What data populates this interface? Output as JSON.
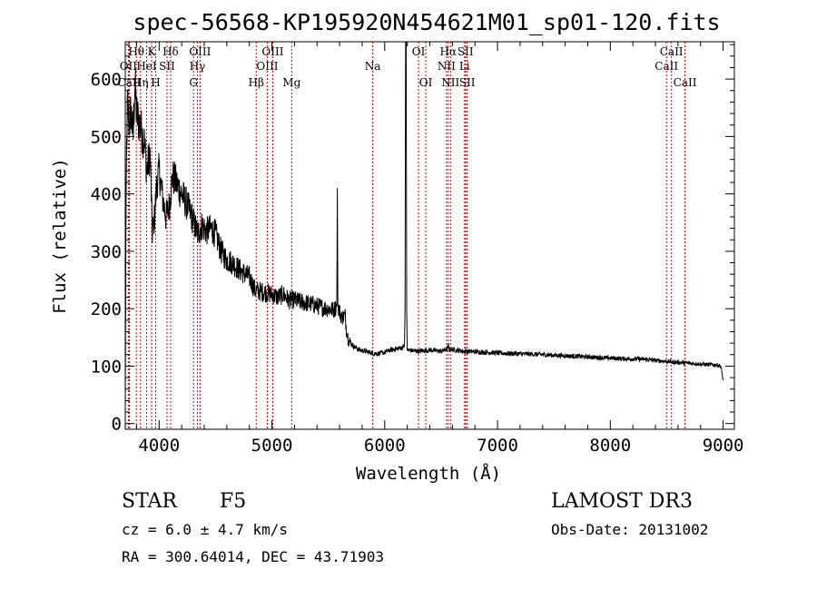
{
  "chart_data": {
    "type": "line",
    "title": "spec-56568-KP195920N454621M01_sp01-120.fits",
    "xlabel": "Wavelength (Å)",
    "ylabel": "Flux (relative)",
    "xlim": [
      3700,
      9100
    ],
    "ylim": [
      -10,
      665
    ],
    "x_ticks": [
      4000,
      5000,
      6000,
      7000,
      8000,
      9000
    ],
    "y_ticks": [
      0,
      100,
      200,
      300,
      400,
      500,
      600
    ],
    "grid": false,
    "spectrum_anchors": [
      [
        3700,
        20
      ],
      [
        3705,
        300
      ],
      [
        3712,
        480
      ],
      [
        3720,
        560
      ],
      [
        3735,
        520
      ],
      [
        3750,
        545
      ],
      [
        3770,
        500
      ],
      [
        3785,
        595
      ],
      [
        3800,
        540
      ],
      [
        3830,
        520
      ],
      [
        3870,
        490
      ],
      [
        3890,
        440
      ],
      [
        3920,
        470
      ],
      [
        3940,
        330
      ],
      [
        3960,
        360
      ],
      [
        3980,
        420
      ],
      [
        4000,
        440
      ],
      [
        4030,
        395
      ],
      [
        4060,
        360
      ],
      [
        4090,
        380
      ],
      [
        4120,
        430
      ],
      [
        4150,
        420
      ],
      [
        4200,
        400
      ],
      [
        4250,
        380
      ],
      [
        4300,
        355
      ],
      [
        4340,
        330
      ],
      [
        4380,
        345
      ],
      [
        4420,
        335
      ],
      [
        4460,
        340
      ],
      [
        4500,
        330
      ],
      [
        4550,
        300
      ],
      [
        4600,
        285
      ],
      [
        4650,
        280
      ],
      [
        4700,
        270
      ],
      [
        4750,
        262
      ],
      [
        4800,
        255
      ],
      [
        4850,
        232
      ],
      [
        4900,
        230
      ],
      [
        4950,
        228
      ],
      [
        5000,
        225
      ],
      [
        5050,
        220
      ],
      [
        5100,
        225
      ],
      [
        5150,
        215
      ],
      [
        5200,
        215
      ],
      [
        5250,
        212
      ],
      [
        5300,
        210
      ],
      [
        5350,
        208
      ],
      [
        5400,
        205
      ],
      [
        5450,
        202
      ],
      [
        5500,
        200
      ],
      [
        5550,
        198
      ],
      [
        5575,
        205
      ],
      [
        5580,
        410
      ],
      [
        5585,
        205
      ],
      [
        5600,
        195
      ],
      [
        5620,
        185
      ],
      [
        5650,
        188
      ],
      [
        5660,
        165
      ],
      [
        5680,
        145
      ],
      [
        5720,
        135
      ],
      [
        5780,
        128
      ],
      [
        5850,
        125
      ],
      [
        5900,
        122
      ],
      [
        5950,
        122
      ],
      [
        6000,
        124
      ],
      [
        6050,
        128
      ],
      [
        6100,
        130
      ],
      [
        6150,
        132
      ],
      [
        6175,
        135
      ],
      [
        6180,
        200
      ],
      [
        6185,
        680
      ],
      [
        6190,
        680
      ],
      [
        6195,
        200
      ],
      [
        6200,
        128
      ],
      [
        6300,
        126
      ],
      [
        6400,
        128
      ],
      [
        6500,
        126
      ],
      [
        6560,
        130
      ],
      [
        6563,
        145
      ],
      [
        6566,
        130
      ],
      [
        6700,
        126
      ],
      [
        6900,
        124
      ],
      [
        7100,
        122
      ],
      [
        7300,
        121
      ],
      [
        7500,
        119
      ],
      [
        7700,
        117
      ],
      [
        7900,
        115
      ],
      [
        8100,
        113
      ],
      [
        8300,
        112
      ],
      [
        8500,
        108
      ],
      [
        8700,
        105
      ],
      [
        8850,
        103
      ],
      [
        8950,
        102
      ],
      [
        8980,
        100
      ],
      [
        9000,
        75
      ],
      [
        9002,
        -5
      ]
    ],
    "noise_amplitude": 0.035,
    "spectral_lines": [
      {
        "label": "Hθ",
        "wavelength": 3798,
        "row": 0
      },
      {
        "label": "OII",
        "wavelength": 3727,
        "row": 1
      },
      {
        "label": "CaII",
        "wavelength": 3736,
        "row": 2
      },
      {
        "label": "Hη",
        "wavelength": 3835,
        "row": 2
      },
      {
        "label": "HeI",
        "wavelength": 3889,
        "row": 1
      },
      {
        "label": "K",
        "wavelength": 3934,
        "row": 0
      },
      {
        "label": "SII",
        "wavelength": 4070,
        "row": 1
      },
      {
        "label": "H",
        "wavelength": 3969,
        "row": 2
      },
      {
        "label": "Hδ",
        "wavelength": 4102,
        "row": 0
      },
      {
        "label": "OIII",
        "wavelength": 4363,
        "row": 0
      },
      {
        "label": "Hγ",
        "wavelength": 4340,
        "row": 1
      },
      {
        "label": "G",
        "wavelength": 4305,
        "row": 2
      },
      {
        "label": "Hβ",
        "wavelength": 4861,
        "row": 2
      },
      {
        "label": "OIII",
        "wavelength": 5007,
        "row": 0
      },
      {
        "label": "OIII",
        "wavelength": 4959,
        "row": 1
      },
      {
        "label": "Mg",
        "wavelength": 5175,
        "row": 2
      },
      {
        "label": "Na",
        "wavelength": 5894,
        "row": 1
      },
      {
        "label": "OI",
        "wavelength": 6300,
        "row": 0
      },
      {
        "label": "OI",
        "wavelength": 6364,
        "row": 2
      },
      {
        "label": "Hα",
        "wavelength": 6563,
        "row": 0
      },
      {
        "label": "NII",
        "wavelength": 6548,
        "row": 1
      },
      {
        "label": "NII",
        "wavelength": 6583,
        "row": 2
      },
      {
        "label": "SII",
        "wavelength": 6716,
        "row": 0
      },
      {
        "label": "Li",
        "wavelength": 6708,
        "row": 1
      },
      {
        "label": "SII",
        "wavelength": 6731,
        "row": 2
      },
      {
        "label": "CaII",
        "wavelength": 8542,
        "row": 0
      },
      {
        "label": "CaII",
        "wavelength": 8498,
        "row": 1
      },
      {
        "label": "CaII",
        "wavelength": 8662,
        "row": 2
      }
    ]
  },
  "footer": {
    "object_class": "STAR",
    "subclass": "F5",
    "redshift": "cz = 6.0 ± 4.7 km/s",
    "coordinates": "RA = 300.64014, DEC =  43.71903",
    "survey": "LAMOST DR3",
    "obs_date": "Obs-Date: 20131002"
  },
  "colors": {
    "spectrum": "#000000",
    "line_markers": "#cc0000",
    "axes": "#000000",
    "background": "#ffffff"
  }
}
